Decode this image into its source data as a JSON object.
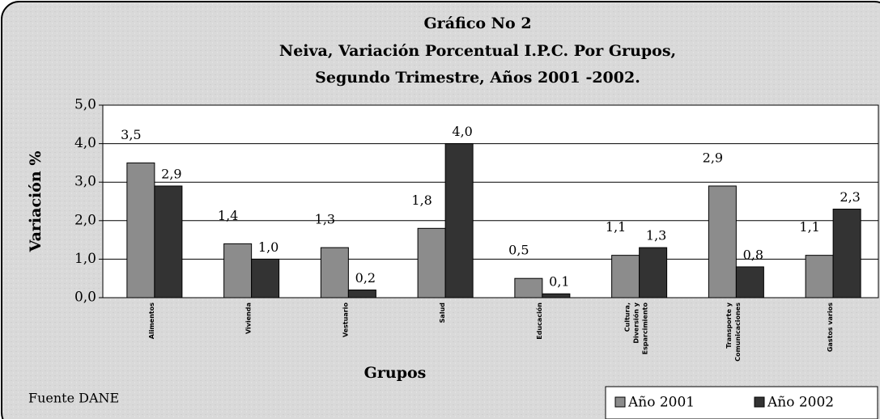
{
  "chart_data": {
    "type": "bar",
    "title": "Gráfico No 2",
    "subtitle": [
      "Neiva, Variación Porcentual I.P.C. Por Grupos,",
      "Segundo Trimestre, Años 2001 -2002."
    ],
    "y_label": "Variación %",
    "x_label": "Grupos",
    "annotation": "Fuente DANE",
    "categories": [
      "Alimentos",
      "Vivienda",
      "Vestuario",
      "Salud",
      "Educación",
      "Cultura, Diversión y Esparcimiento",
      "Transporte y Comunicaciones",
      "Gastos varios"
    ],
    "series": [
      {
        "name": "Año 2001",
        "color": "#8c8c8c",
        "values": [
          3.5,
          1.4,
          1.3,
          1.8,
          0.5,
          1.1,
          2.9,
          1.1
        ],
        "value_labels": [
          "3,5",
          "1,4",
          "1,3",
          "1,8",
          "0,5",
          "1,1",
          "2,9",
          "1,1"
        ]
      },
      {
        "name": "Año 2002",
        "color": "#333333",
        "values": [
          2.9,
          1.0,
          0.2,
          4.0,
          0.1,
          1.3,
          0.8,
          2.3
        ],
        "value_labels": [
          "2,9",
          "1,0",
          "0,2",
          "4,0",
          "0,1",
          "1,3",
          "0,8",
          "2,3"
        ]
      }
    ],
    "ylim": [
      0,
      5
    ],
    "yticks": [
      {
        "value": 0,
        "label": "0,0"
      },
      {
        "value": 1,
        "label": "1,0"
      },
      {
        "value": 2,
        "label": "2,0"
      },
      {
        "value": 3,
        "label": "3,0"
      },
      {
        "value": 4,
        "label": "4,0"
      },
      {
        "value": 5,
        "label": "5,0"
      }
    ],
    "grid": true,
    "legend": "bottom-right"
  }
}
